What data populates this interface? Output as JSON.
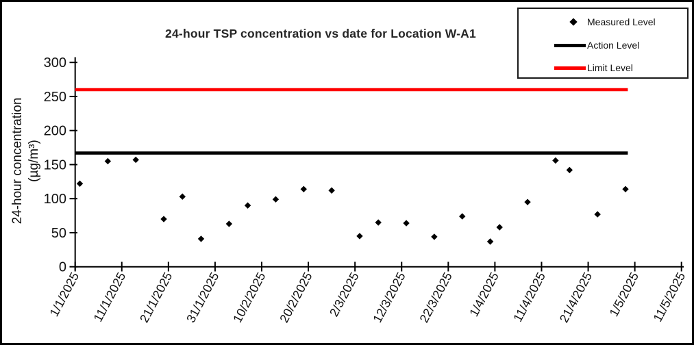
{
  "chart_data": {
    "type": "scatter",
    "title": "24-hour TSP concentration vs date for Location W-A1",
    "ylabel_line1": "24-hour concentration",
    "ylabel_line2": "(µg/m³)",
    "ylim": [
      0,
      300
    ],
    "y_ticks": [
      0,
      50,
      100,
      150,
      200,
      250,
      300
    ],
    "xlim_days": [
      0,
      130
    ],
    "x_tick_days": [
      0,
      10,
      20,
      30,
      40,
      50,
      60,
      70,
      80,
      90,
      100,
      110,
      120,
      130
    ],
    "x_tick_labels": [
      "1/1/2025",
      "11/1/2025",
      "21/1/2025",
      "31/1/2025",
      "10/2/2025",
      "20/2/2025",
      "2/3/2025",
      "12/3/2025",
      "22/3/2025",
      "1/4/2025",
      "11/4/2025",
      "21/4/2025",
      "1/5/2025",
      "11/5/2025"
    ],
    "grid": false,
    "legend_position": "top-right",
    "series": [
      {
        "name": "Measured Level",
        "type": "scatter",
        "marker": "diamond",
        "color": "#000000",
        "points": [
          {
            "date": "2/1/2025",
            "day": 1,
            "value": 122
          },
          {
            "date": "8/1/2025",
            "day": 7,
            "value": 155
          },
          {
            "date": "14/1/2025",
            "day": 13,
            "value": 157
          },
          {
            "date": "20/1/2025",
            "day": 19,
            "value": 70
          },
          {
            "date": "24/1/2025",
            "day": 23,
            "value": 103
          },
          {
            "date": "28/1/2025",
            "day": 27,
            "value": 41
          },
          {
            "date": "3/2/2025",
            "day": 33,
            "value": 63
          },
          {
            "date": "7/2/2025",
            "day": 37,
            "value": 90
          },
          {
            "date": "13/2/2025",
            "day": 43,
            "value": 99
          },
          {
            "date": "19/2/2025",
            "day": 49,
            "value": 114
          },
          {
            "date": "25/2/2025",
            "day": 55,
            "value": 112
          },
          {
            "date": "3/3/2025",
            "day": 61,
            "value": 45
          },
          {
            "date": "7/3/2025",
            "day": 65,
            "value": 65
          },
          {
            "date": "13/3/2025",
            "day": 71,
            "value": 64
          },
          {
            "date": "19/3/2025",
            "day": 77,
            "value": 44
          },
          {
            "date": "25/3/2025",
            "day": 83,
            "value": 74
          },
          {
            "date": "31/3/2025",
            "day": 89,
            "value": 37
          },
          {
            "date": "2/4/2025",
            "day": 91,
            "value": 58
          },
          {
            "date": "8/4/2025",
            "day": 97,
            "value": 95
          },
          {
            "date": "14/4/2025",
            "day": 103,
            "value": 156
          },
          {
            "date": "17/4/2025",
            "day": 106,
            "value": 142
          },
          {
            "date": "23/4/2025",
            "day": 112,
            "value": 77
          },
          {
            "date": "29/4/2025",
            "day": 118,
            "value": 114
          }
        ]
      },
      {
        "name": "Action Level",
        "type": "line",
        "color": "#000000",
        "value": 167,
        "span_days": [
          0,
          118.5
        ]
      },
      {
        "name": "Limit Level",
        "type": "line",
        "color": "#fe0000",
        "value": 260,
        "span_days": [
          0,
          118.5
        ]
      }
    ]
  }
}
